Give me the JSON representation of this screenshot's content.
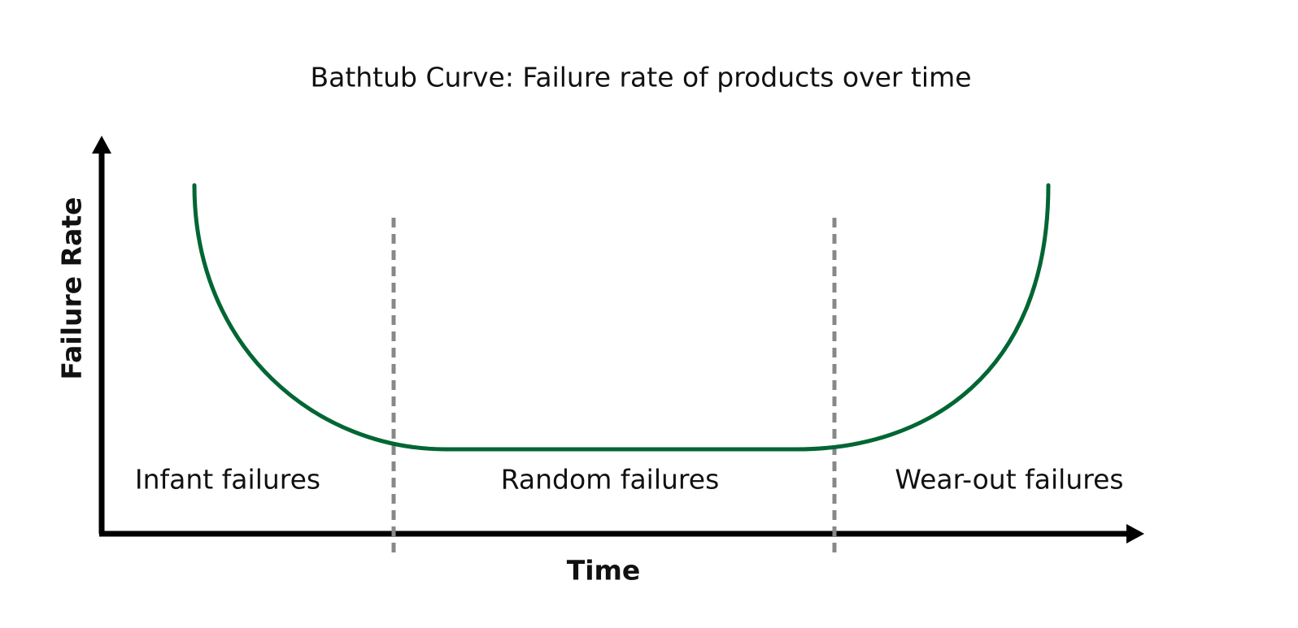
{
  "title": "Bathtub Curve: Failure rate of products over time",
  "y_axis_label": "Failure Rate",
  "x_axis_label": "Time",
  "regions": [
    "Infant failures",
    "Random failures",
    "Wear-out failures"
  ]
}
